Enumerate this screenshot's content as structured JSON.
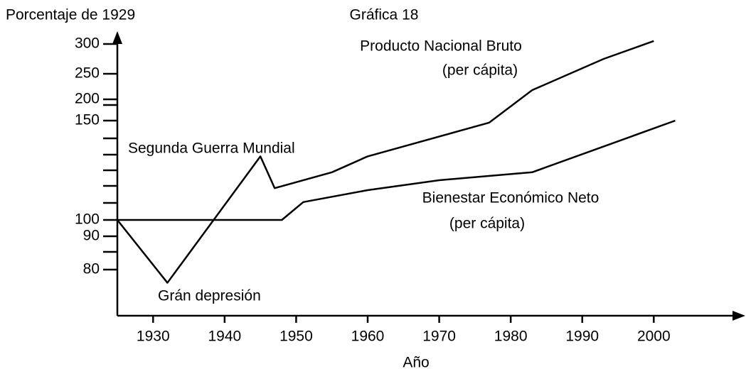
{
  "chart_data": {
    "type": "line",
    "title": "Gráfica 18",
    "y_label": "Porcentaje de 1929",
    "x_label": "Año",
    "annotations": [
      "Segunda Guerra Mundial",
      "Grán depresión"
    ],
    "xlim": [
      1925,
      2012
    ],
    "xticks": [
      1930,
      1940,
      1950,
      1960,
      1970,
      1980,
      1990,
      2000
    ],
    "ylim": [
      66,
      312
    ],
    "yticks": [
      80,
      90,
      100,
      150,
      200,
      250,
      300
    ],
    "color": "#000000",
    "series": [
      {
        "name": "Producto Nacional Bruto",
        "note": "(per cápita)",
        "x": [
          1925,
          1932,
          1945,
          1947,
          1950,
          1955,
          1960,
          1977,
          1983,
          1993,
          2000
        ],
        "values": [
          100,
          76,
          132,
          116,
          119,
          124,
          132,
          149,
          218,
          275,
          305
        ]
      },
      {
        "name": "Bienestar Económico Neto",
        "note": "(per cápita)",
        "x": [
          1925,
          1948,
          1951,
          1960,
          1970,
          1983,
          1993,
          2003
        ],
        "values": [
          100,
          100,
          109,
          115,
          120,
          124,
          137,
          150
        ]
      }
    ]
  }
}
